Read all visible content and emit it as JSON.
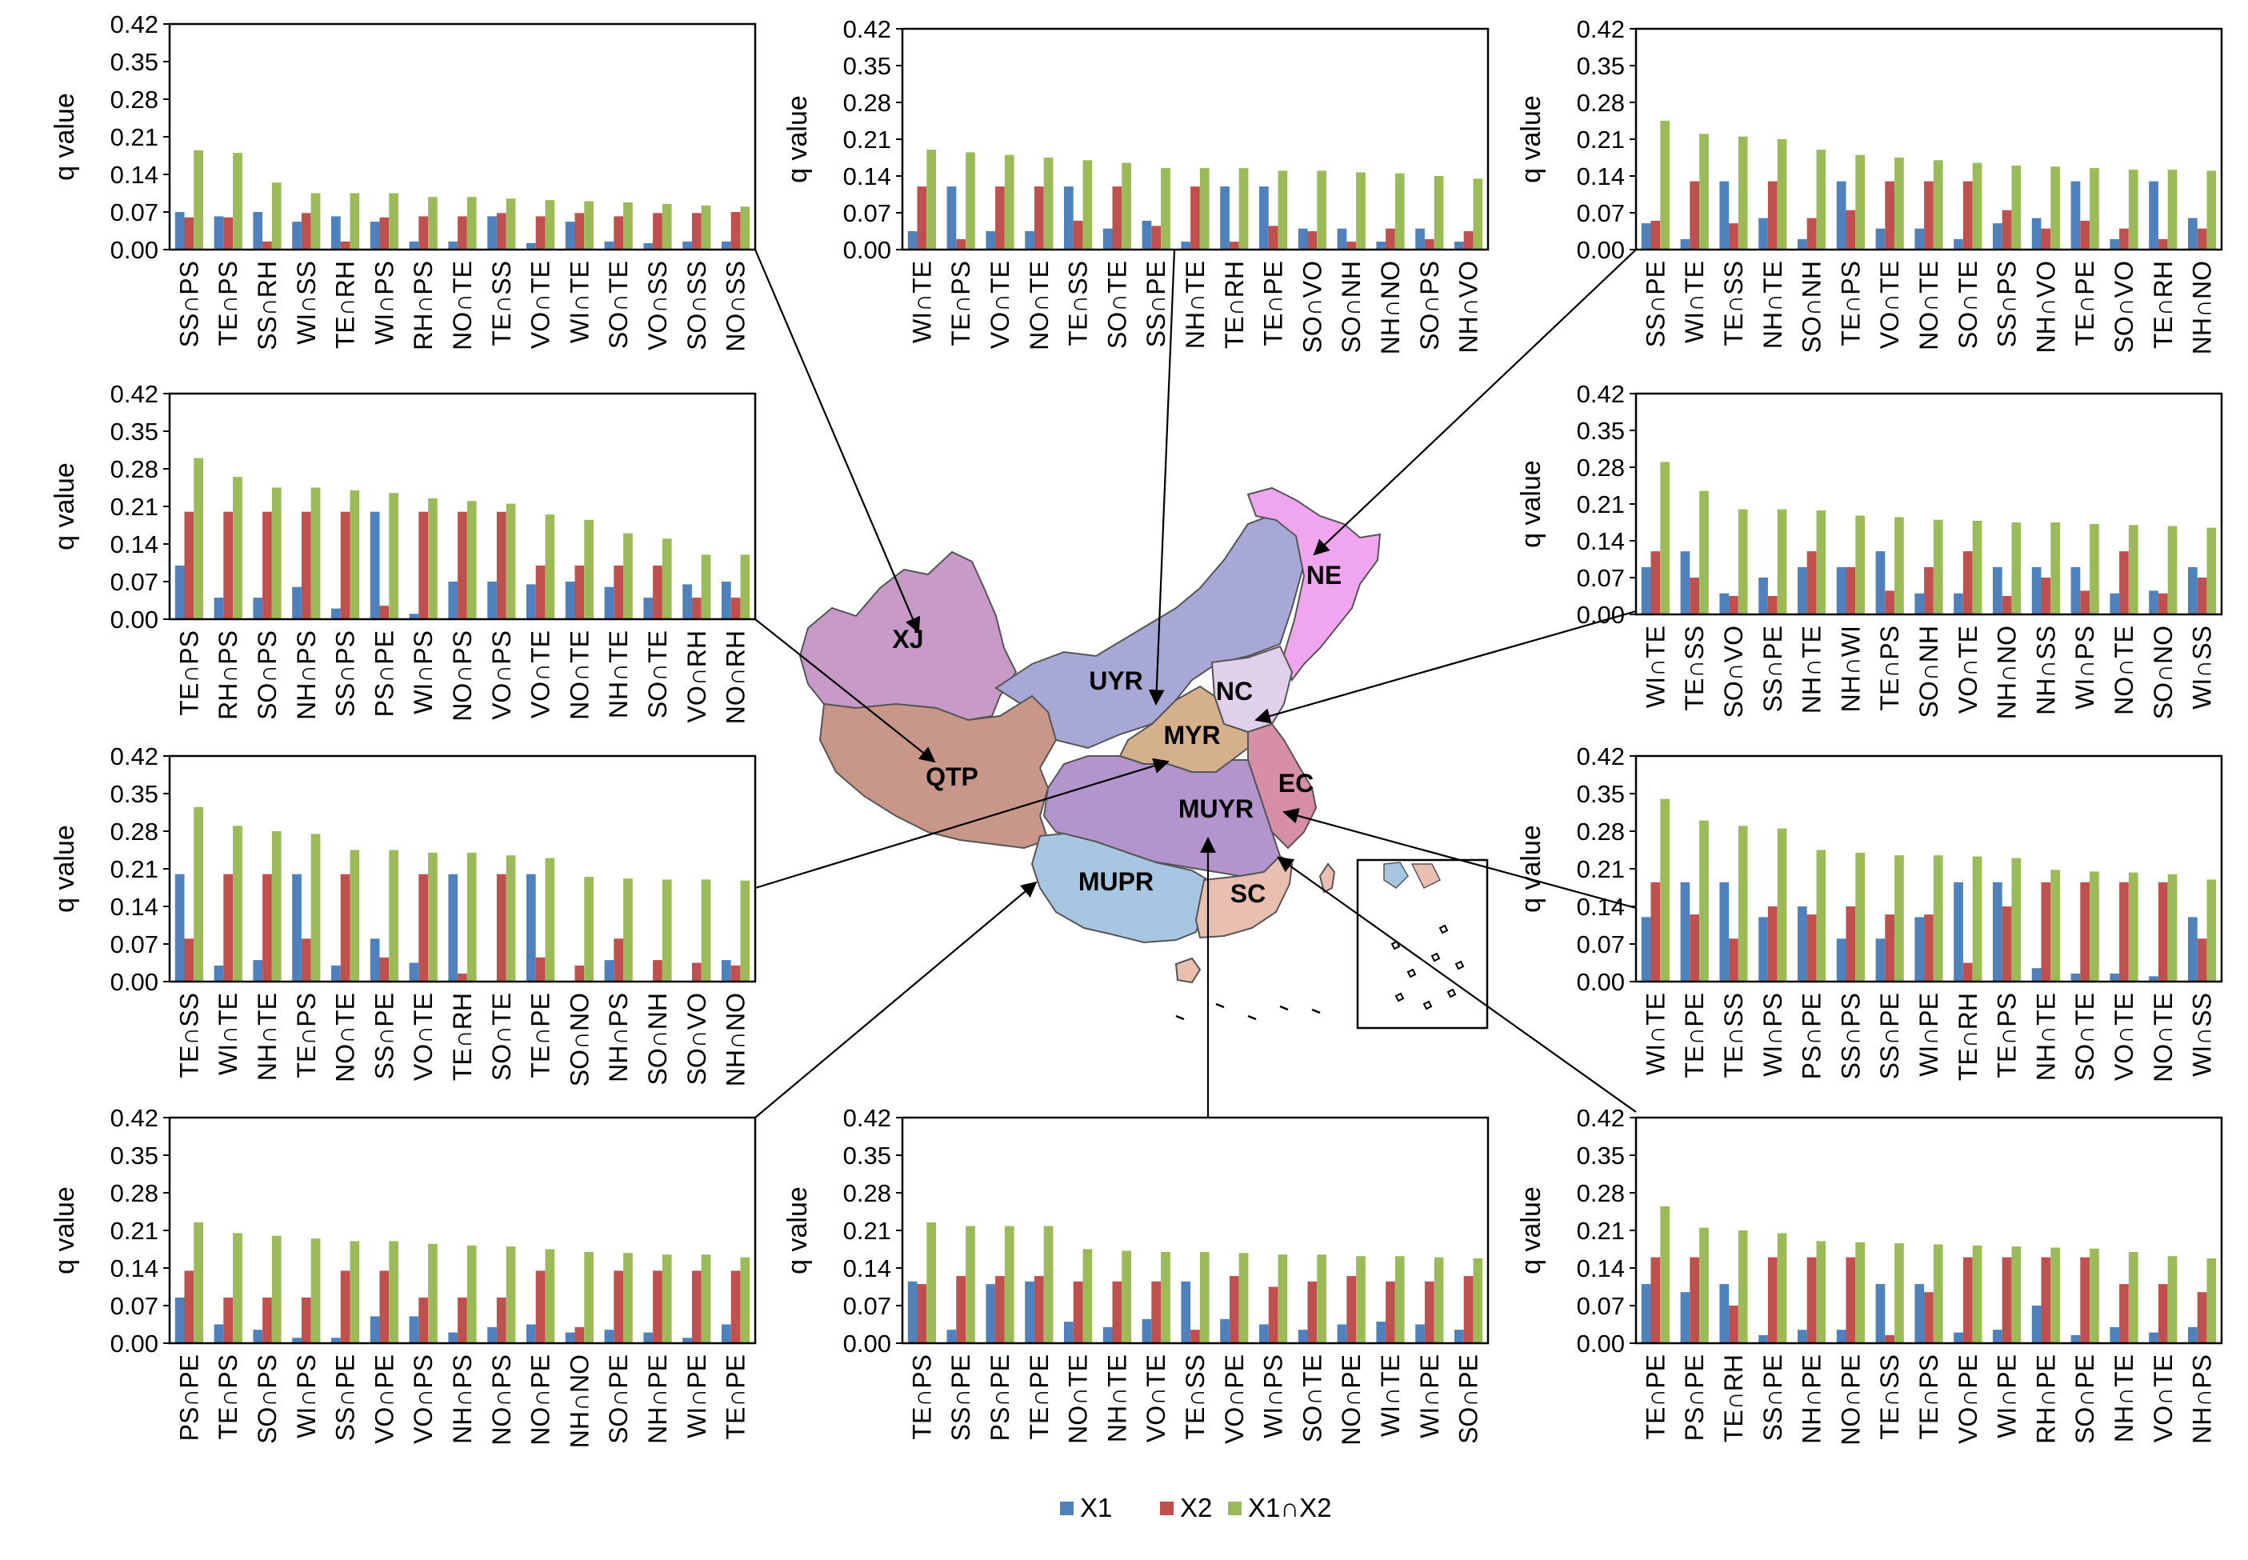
{
  "y_axis_label": "q value",
  "legend": [
    {
      "name": "X1",
      "color": "#4f81bd"
    },
    {
      "name": "X2",
      "color": "#c0504d"
    },
    {
      "name": "X1∩X2",
      "color": "#9bbb59"
    }
  ],
  "regions": [
    {
      "code": "XJ",
      "color": "#c89ac8"
    },
    {
      "code": "UYR",
      "color": "#a8a8d6"
    },
    {
      "code": "NE",
      "color": "#f0a6ee"
    },
    {
      "code": "NC",
      "color": "#e0d0ec"
    },
    {
      "code": "MYR",
      "color": "#d4b08c"
    },
    {
      "code": "QTP",
      "color": "#c8978a"
    },
    {
      "code": "MUYR",
      "color": "#b394cc"
    },
    {
      "code": "EC",
      "color": "#d68fa6"
    },
    {
      "code": "MUPR",
      "color": "#a6c6e2"
    },
    {
      "code": "SC",
      "color": "#e8bfb0"
    }
  ],
  "chart_data": [
    {
      "type": "bar",
      "region": "XJ",
      "ylim": [
        0,
        0.42
      ],
      "yticks": [
        "0.00",
        "0.07",
        "0.14",
        "0.21",
        "0.28",
        "0.35",
        "0.42"
      ],
      "ylabel": "q value",
      "categories": [
        "SS∩PS",
        "TE∩PS",
        "SS∩RH",
        "WI∩SS",
        "TE∩RH",
        "WI∩PS",
        "RH∩PS",
        "NO∩TE",
        "TE∩SS",
        "VO∩TE",
        "WI∩TE",
        "SO∩TE",
        "VO∩SS",
        "SO∩SS",
        "NO∩SS"
      ],
      "series": [
        {
          "name": "X1",
          "values": [
            0.07,
            0.062,
            0.07,
            0.052,
            0.062,
            0.052,
            0.015,
            0.015,
            0.062,
            0.012,
            0.052,
            0.015,
            0.012,
            0.015,
            0.015
          ]
        },
        {
          "name": "X2",
          "values": [
            0.06,
            0.06,
            0.015,
            0.068,
            0.015,
            0.06,
            0.062,
            0.062,
            0.068,
            0.062,
            0.068,
            0.062,
            0.068,
            0.068,
            0.07
          ]
        },
        {
          "name": "X1∩X2",
          "values": [
            0.185,
            0.18,
            0.125,
            0.105,
            0.105,
            0.105,
            0.098,
            0.098,
            0.095,
            0.092,
            0.09,
            0.088,
            0.085,
            0.082,
            0.08
          ]
        }
      ]
    },
    {
      "type": "bar",
      "region": "UYR",
      "ylim": [
        0,
        0.42
      ],
      "yticks": [
        "0.00",
        "0.07",
        "0.14",
        "0.21",
        "0.28",
        "0.35",
        "0.42"
      ],
      "ylabel": "q value",
      "categories": [
        "WI∩TE",
        "TE∩PS",
        "VO∩TE",
        "NO∩TE",
        "TE∩SS",
        "SO∩TE",
        "SS∩PE",
        "NH∩TE",
        "TE∩RH",
        "TE∩PE",
        "SO∩VO",
        "SO∩NH",
        "NH∩NO",
        "SO∩PS",
        "NH∩VO"
      ],
      "series": [
        {
          "name": "X1",
          "values": [
            0.035,
            0.12,
            0.035,
            0.035,
            0.12,
            0.04,
            0.055,
            0.015,
            0.12,
            0.12,
            0.04,
            0.04,
            0.015,
            0.04,
            0.015
          ]
        },
        {
          "name": "X2",
          "values": [
            0.12,
            0.02,
            0.12,
            0.12,
            0.055,
            0.12,
            0.045,
            0.12,
            0.015,
            0.045,
            0.035,
            0.015,
            0.04,
            0.02,
            0.035
          ]
        },
        {
          "name": "X1∩X2",
          "values": [
            0.19,
            0.185,
            0.18,
            0.175,
            0.17,
            0.165,
            0.155,
            0.155,
            0.155,
            0.15,
            0.15,
            0.147,
            0.145,
            0.14,
            0.135
          ]
        }
      ]
    },
    {
      "type": "bar",
      "region": "NE",
      "ylim": [
        0,
        0.42
      ],
      "yticks": [
        "0.00",
        "0.07",
        "0.14",
        "0.21",
        "0.28",
        "0.35",
        "0.42"
      ],
      "ylabel": "q value",
      "categories": [
        "SS∩PE",
        "WI∩TE",
        "TE∩SS",
        "NH∩TE",
        "SO∩NH",
        "TE∩PS",
        "VO∩TE",
        "NO∩TE",
        "SO∩TE",
        "SS∩PS",
        "NH∩VO",
        "TE∩PE",
        "SO∩VO",
        "TE∩RH",
        "NH∩NO"
      ],
      "series": [
        {
          "name": "X1",
          "values": [
            0.05,
            0.02,
            0.13,
            0.06,
            0.02,
            0.13,
            0.04,
            0.04,
            0.02,
            0.05,
            0.06,
            0.13,
            0.02,
            0.13,
            0.06
          ]
        },
        {
          "name": "X2",
          "values": [
            0.055,
            0.13,
            0.05,
            0.13,
            0.06,
            0.075,
            0.13,
            0.13,
            0.13,
            0.075,
            0.04,
            0.055,
            0.04,
            0.02,
            0.04
          ]
        },
        {
          "name": "X1∩X2",
          "values": [
            0.245,
            0.22,
            0.215,
            0.21,
            0.19,
            0.18,
            0.175,
            0.17,
            0.165,
            0.16,
            0.158,
            0.155,
            0.152,
            0.152,
            0.15
          ]
        }
      ]
    },
    {
      "type": "bar",
      "region": "QTP",
      "ylim": [
        0,
        0.42
      ],
      "yticks": [
        "0.00",
        "0.07",
        "0.14",
        "0.21",
        "0.28",
        "0.35",
        "0.42"
      ],
      "ylabel": "q value",
      "categories": [
        "TE∩PS",
        "RH∩PS",
        "SO∩PS",
        "NH∩PS",
        "SS∩PS",
        "PS∩PE",
        "WI∩PS",
        "NO∩PS",
        "VO∩PS",
        "VO∩TE",
        "NO∩TE",
        "NH∩TE",
        "SO∩TE",
        "VO∩RH",
        "NO∩RH"
      ],
      "series": [
        {
          "name": "X1",
          "values": [
            0.1,
            0.04,
            0.04,
            0.06,
            0.02,
            0.2,
            0.01,
            0.07,
            0.07,
            0.065,
            0.07,
            0.06,
            0.04,
            0.065,
            0.07
          ]
        },
        {
          "name": "X2",
          "values": [
            0.2,
            0.2,
            0.2,
            0.2,
            0.2,
            0.025,
            0.2,
            0.2,
            0.2,
            0.1,
            0.1,
            0.1,
            0.1,
            0.04,
            0.04
          ]
        },
        {
          "name": "X1∩X2",
          "values": [
            0.3,
            0.265,
            0.245,
            0.245,
            0.24,
            0.235,
            0.225,
            0.22,
            0.215,
            0.195,
            0.185,
            0.16,
            0.15,
            0.12,
            0.12
          ]
        }
      ]
    },
    {
      "type": "bar",
      "region": "NC",
      "ylim": [
        0,
        0.42
      ],
      "yticks": [
        "0.00",
        "0.07",
        "0.14",
        "0.21",
        "0.28",
        "0.35",
        "0.42"
      ],
      "ylabel": "q value",
      "categories": [
        "WI∩TE",
        "TE∩SS",
        "SO∩VO",
        "SS∩PE",
        "NH∩TE",
        "NH∩WI",
        "TE∩PS",
        "SO∩NH",
        "VO∩TE",
        "NH∩NO",
        "NH∩SS",
        "WI∩PS",
        "NO∩TE",
        "SO∩NO",
        "WI∩SS"
      ],
      "series": [
        {
          "name": "X1",
          "values": [
            0.09,
            0.12,
            0.04,
            0.07,
            0.09,
            0.09,
            0.12,
            0.04,
            0.04,
            0.09,
            0.09,
            0.09,
            0.04,
            0.045,
            0.09
          ]
        },
        {
          "name": "X2",
          "values": [
            0.12,
            0.07,
            0.035,
            0.035,
            0.12,
            0.09,
            0.045,
            0.09,
            0.12,
            0.035,
            0.07,
            0.045,
            0.12,
            0.04,
            0.07
          ]
        },
        {
          "name": "X1∩X2",
          "values": [
            0.29,
            0.235,
            0.2,
            0.2,
            0.198,
            0.188,
            0.185,
            0.18,
            0.178,
            0.175,
            0.175,
            0.172,
            0.17,
            0.168,
            0.165
          ]
        }
      ]
    },
    {
      "type": "bar",
      "region": "MYR",
      "ylim": [
        0,
        0.42
      ],
      "yticks": [
        "0.00",
        "0.07",
        "0.14",
        "0.21",
        "0.28",
        "0.35",
        "0.42"
      ],
      "ylabel": "q value",
      "categories": [
        "TE∩SS",
        "WI∩TE",
        "NH∩TE",
        "TE∩PS",
        "NO∩TE",
        "SS∩PE",
        "VO∩TE",
        "TE∩RH",
        "SO∩TE",
        "TE∩PE",
        "SO∩NO",
        "NH∩PS",
        "SO∩NH",
        "SO∩VO",
        "NH∩NO"
      ],
      "series": [
        {
          "name": "X1",
          "values": [
            0.2,
            0.03,
            0.04,
            0.2,
            0.03,
            0.08,
            0.035,
            0.2,
            0.0,
            0.2,
            0.0,
            0.04,
            0.0,
            0.0,
            0.04
          ]
        },
        {
          "name": "X2",
          "values": [
            0.08,
            0.2,
            0.2,
            0.08,
            0.2,
            0.045,
            0.2,
            0.015,
            0.2,
            0.045,
            0.03,
            0.08,
            0.04,
            0.035,
            0.03
          ]
        },
        {
          "name": "X1∩X2",
          "values": [
            0.325,
            0.29,
            0.28,
            0.275,
            0.245,
            0.245,
            0.24,
            0.24,
            0.235,
            0.23,
            0.195,
            0.192,
            0.19,
            0.19,
            0.188
          ]
        }
      ]
    },
    {
      "type": "bar",
      "region": "EC",
      "ylim": [
        0,
        0.42
      ],
      "yticks": [
        "0.00",
        "0.07",
        "0.14",
        "0.21",
        "0.28",
        "0.35",
        "0.42"
      ],
      "ylabel": "q value",
      "categories": [
        "WI∩TE",
        "TE∩PE",
        "TE∩SS",
        "WI∩PS",
        "PS∩PE",
        "SS∩PS",
        "SS∩PE",
        "WI∩PE",
        "TE∩RH",
        "TE∩PS",
        "NH∩TE",
        "SO∩TE",
        "VO∩TE",
        "NO∩TE",
        "WI∩SS"
      ],
      "series": [
        {
          "name": "X1",
          "values": [
            0.12,
            0.185,
            0.185,
            0.12,
            0.14,
            0.08,
            0.08,
            0.12,
            0.185,
            0.185,
            0.025,
            0.015,
            0.015,
            0.01,
            0.12
          ]
        },
        {
          "name": "X2",
          "values": [
            0.185,
            0.125,
            0.08,
            0.14,
            0.125,
            0.14,
            0.125,
            0.125,
            0.035,
            0.14,
            0.185,
            0.185,
            0.185,
            0.185,
            0.08
          ]
        },
        {
          "name": "X1∩X2",
          "values": [
            0.34,
            0.3,
            0.29,
            0.285,
            0.245,
            0.24,
            0.235,
            0.235,
            0.233,
            0.23,
            0.208,
            0.205,
            0.203,
            0.2,
            0.19
          ]
        }
      ]
    },
    {
      "type": "bar",
      "region": "MUPR",
      "ylim": [
        0,
        0.42
      ],
      "yticks": [
        "0.00",
        "0.07",
        "0.14",
        "0.21",
        "0.28",
        "0.35",
        "0.42"
      ],
      "ylabel": "q value",
      "categories": [
        "PS∩PE",
        "TE∩PS",
        "SO∩PS",
        "WI∩PS",
        "SS∩PE",
        "VO∩PE",
        "VO∩PS",
        "NH∩PS",
        "NO∩PS",
        "NO∩PE",
        "NH∩NO",
        "SO∩PE",
        "NH∩PE",
        "WI∩PE",
        "TE∩PE"
      ],
      "series": [
        {
          "name": "X1",
          "values": [
            0.085,
            0.035,
            0.025,
            0.01,
            0.01,
            0.05,
            0.05,
            0.02,
            0.03,
            0.035,
            0.02,
            0.025,
            0.02,
            0.01,
            0.035
          ]
        },
        {
          "name": "X2",
          "values": [
            0.135,
            0.085,
            0.085,
            0.085,
            0.135,
            0.135,
            0.085,
            0.085,
            0.085,
            0.135,
            0.03,
            0.135,
            0.135,
            0.135,
            0.135
          ]
        },
        {
          "name": "X1∩X2",
          "values": [
            0.225,
            0.205,
            0.2,
            0.195,
            0.19,
            0.19,
            0.185,
            0.182,
            0.18,
            0.175,
            0.17,
            0.168,
            0.165,
            0.165,
            0.16
          ]
        }
      ]
    },
    {
      "type": "bar",
      "region": "MUYR",
      "ylim": [
        0,
        0.42
      ],
      "yticks": [
        "0.00",
        "0.07",
        "0.14",
        "0.21",
        "0.28",
        "0.35",
        "0.42"
      ],
      "ylabel": "q value",
      "categories": [
        "TE∩PS",
        "SS∩PE",
        "PS∩PE",
        "TE∩PE",
        "NO∩TE",
        "NH∩TE",
        "VO∩TE",
        "TE∩SS",
        "VO∩PE",
        "WI∩PS",
        "SO∩TE",
        "NO∩PE",
        "WI∩TE",
        "WI∩PE",
        "SO∩PE"
      ],
      "series": [
        {
          "name": "X1",
          "values": [
            0.115,
            0.025,
            0.11,
            0.115,
            0.04,
            0.03,
            0.045,
            0.115,
            0.045,
            0.035,
            0.025,
            0.035,
            0.04,
            0.035,
            0.025
          ]
        },
        {
          "name": "X2",
          "values": [
            0.11,
            0.125,
            0.125,
            0.125,
            0.115,
            0.115,
            0.115,
            0.025,
            0.125,
            0.105,
            0.115,
            0.125,
            0.115,
            0.115,
            0.125
          ]
        },
        {
          "name": "X1∩X2",
          "values": [
            0.225,
            0.218,
            0.218,
            0.218,
            0.175,
            0.172,
            0.17,
            0.17,
            0.168,
            0.165,
            0.165,
            0.162,
            0.162,
            0.16,
            0.158
          ]
        }
      ]
    },
    {
      "type": "bar",
      "region": "SC",
      "ylim": [
        0,
        0.42
      ],
      "yticks": [
        "0.00",
        "0.07",
        "0.14",
        "0.21",
        "0.28",
        "0.35",
        "0.42"
      ],
      "ylabel": "q value",
      "categories": [
        "TE∩PE",
        "PS∩PE",
        "TE∩RH",
        "SS∩PE",
        "NH∩PE",
        "NO∩PE",
        "TE∩SS",
        "TE∩PS",
        "VO∩PE",
        "WI∩PE",
        "RH∩PE",
        "SO∩PE",
        "NH∩TE",
        "VO∩TE",
        "NH∩PS"
      ],
      "series": [
        {
          "name": "X1",
          "values": [
            0.11,
            0.095,
            0.11,
            0.015,
            0.025,
            0.025,
            0.11,
            0.11,
            0.02,
            0.025,
            0.07,
            0.015,
            0.03,
            0.02,
            0.03
          ]
        },
        {
          "name": "X2",
          "values": [
            0.16,
            0.16,
            0.07,
            0.16,
            0.16,
            0.16,
            0.015,
            0.095,
            0.16,
            0.16,
            0.16,
            0.16,
            0.11,
            0.11,
            0.095
          ]
        },
        {
          "name": "X1∩X2",
          "values": [
            0.255,
            0.215,
            0.21,
            0.205,
            0.19,
            0.188,
            0.186,
            0.184,
            0.182,
            0.18,
            0.178,
            0.176,
            0.17,
            0.162,
            0.158
          ]
        }
      ]
    }
  ]
}
